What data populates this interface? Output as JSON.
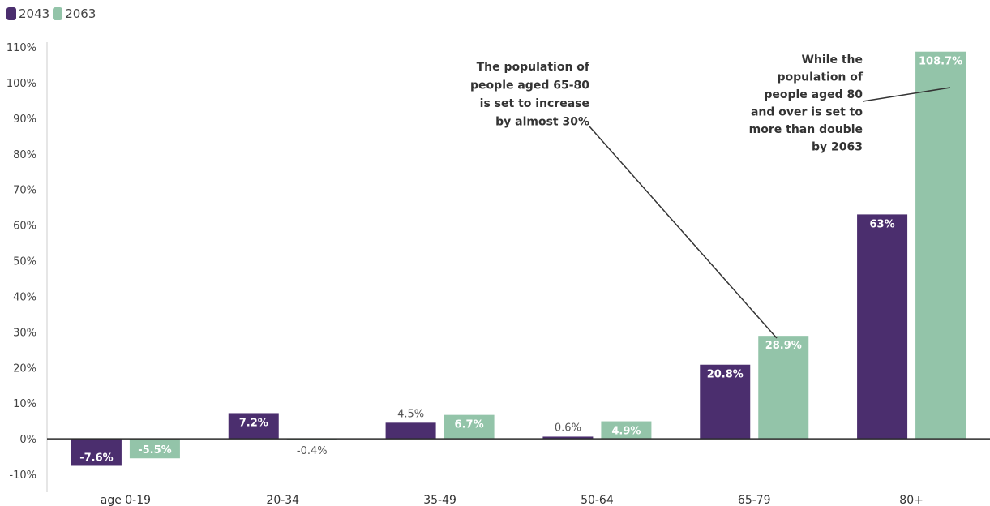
{
  "chart_data": {
    "type": "bar",
    "categories": [
      "age 0-19",
      "20-34",
      "35-49",
      "50-64",
      "65-79",
      "80+"
    ],
    "series": [
      {
        "name": "2043",
        "color": "#4b2e6e",
        "values": [
          -7.6,
          7.2,
          4.5,
          0.6,
          20.8,
          63
        ],
        "labels": [
          "-7.6%",
          "7.2%",
          "4.5%",
          "0.6%",
          "20.8%",
          "63%"
        ]
      },
      {
        "name": "2063",
        "color": "#93c4a9",
        "values": [
          -5.5,
          -0.4,
          6.7,
          4.9,
          28.9,
          108.7
        ],
        "labels": [
          "-5.5%",
          "-0.4%",
          "6.7%",
          "4.9%",
          "28.9%",
          "108.7%"
        ]
      }
    ],
    "ylim": [
      -10,
      110
    ],
    "yticks": [
      110,
      100,
      90,
      80,
      70,
      60,
      50,
      40,
      30,
      20,
      10,
      0,
      -10
    ],
    "ytick_labels": [
      "110%",
      "100%",
      "90%",
      "80%",
      "70%",
      "60%",
      "50%",
      "40%",
      "30%",
      "20%",
      "10%",
      "0%",
      "-10%"
    ],
    "legend": "top-left",
    "grid": false,
    "annotations": [
      {
        "lines": [
          "The population of",
          "people aged 65-80",
          "is set to increase",
          "by almost 30%"
        ],
        "target_category": "65-79",
        "target_series": "2063"
      },
      {
        "lines": [
          "While the",
          "population of",
          "people aged 80",
          "and over is set to",
          "more than double",
          "by 2063"
        ],
        "target_category": "80+",
        "target_series": "2063"
      }
    ]
  }
}
